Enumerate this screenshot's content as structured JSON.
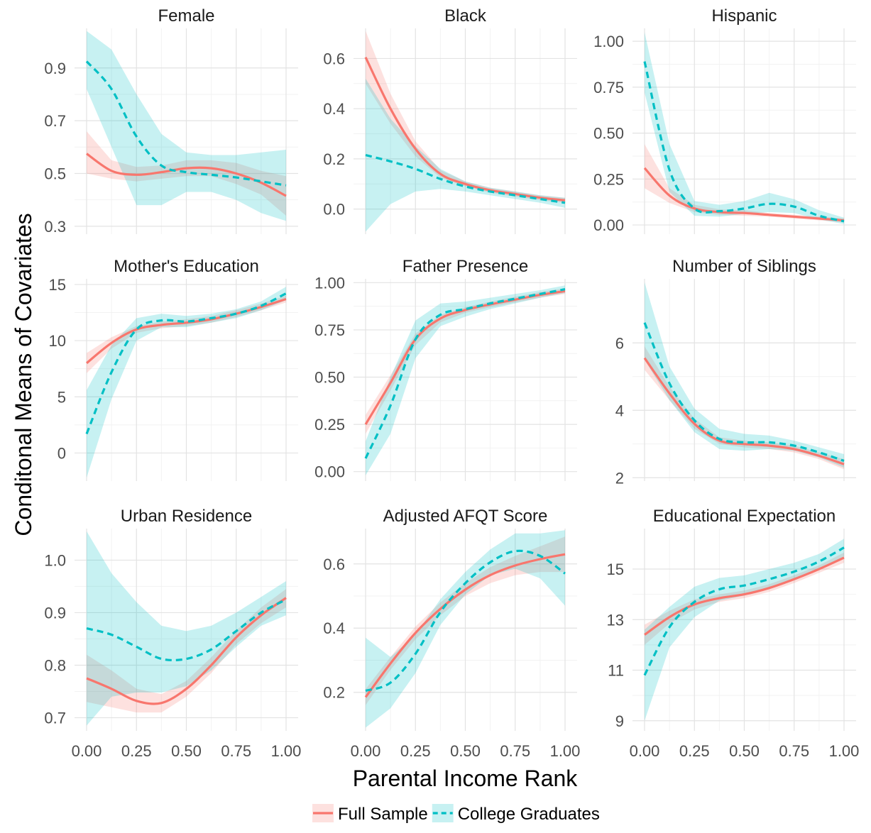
{
  "chart_data": {
    "type": "line",
    "layout": "facet-grid 3x3",
    "xlabel": "Parental Income Rank",
    "ylabel": "Conditonal Means of Covariates",
    "x_ticks": [
      "0.00",
      "0.25",
      "0.50",
      "0.75",
      "1.00"
    ],
    "xlim": [
      0,
      1
    ],
    "grid": true,
    "legend": {
      "placement": "bottom",
      "entries": [
        {
          "name": "Full Sample",
          "color": "#F8766D",
          "line": "solid"
        },
        {
          "name": "College Graduates",
          "color": "#00BFC4",
          "line": "dashed"
        }
      ]
    },
    "x": [
      0,
      0.125,
      0.25,
      0.375,
      0.5,
      0.625,
      0.75,
      0.875,
      1.0
    ],
    "panels": [
      {
        "title": "Female",
        "ylim": [
          0.27,
          1.05
        ],
        "y_ticks": [
          0.3,
          0.5,
          0.7,
          0.9
        ],
        "y_tick_labels": [
          "0.3",
          "0.5",
          "0.7",
          "0.9"
        ],
        "series": [
          {
            "name": "Full Sample",
            "values": [
              0.575,
              0.51,
              0.495,
              0.505,
              0.52,
              0.52,
              0.5,
              0.465,
              0.415
            ],
            "lower": [
              0.5,
              0.48,
              0.47,
              0.48,
              0.49,
              0.49,
              0.46,
              0.42,
              0.34
            ],
            "upper": [
              0.66,
              0.55,
              0.525,
              0.53,
              0.55,
              0.55,
              0.54,
              0.51,
              0.49
            ]
          },
          {
            "name": "College Graduates",
            "values": [
              0.925,
              0.82,
              0.64,
              0.53,
              0.505,
              0.495,
              0.485,
              0.47,
              0.455
            ],
            "lower": [
              0.82,
              0.6,
              0.38,
              0.38,
              0.43,
              0.43,
              0.4,
              0.35,
              0.32
            ],
            "upper": [
              1.04,
              0.97,
              0.8,
              0.65,
              0.58,
              0.57,
              0.57,
              0.58,
              0.59
            ]
          }
        ]
      },
      {
        "title": "Black",
        "ylim": [
          -0.1,
          0.72
        ],
        "y_ticks": [
          0.0,
          0.2,
          0.4,
          0.6
        ],
        "y_tick_labels": [
          "0.0",
          "0.2",
          "0.4",
          "0.6"
        ],
        "series": [
          {
            "name": "Full Sample",
            "values": [
              0.605,
              0.4,
              0.24,
              0.14,
              0.1,
              0.075,
              0.06,
              0.045,
              0.035
            ],
            "lower": [
              0.5,
              0.34,
              0.21,
              0.125,
              0.09,
              0.065,
              0.05,
              0.035,
              0.025
            ],
            "upper": [
              0.71,
              0.46,
              0.27,
              0.155,
              0.11,
              0.085,
              0.07,
              0.055,
              0.045
            ]
          },
          {
            "name": "College Graduates",
            "values": [
              0.215,
              0.19,
              0.16,
              0.12,
              0.09,
              0.07,
              0.055,
              0.04,
              0.025
            ],
            "lower": [
              -0.09,
              0.02,
              0.07,
              0.08,
              0.07,
              0.055,
              0.04,
              0.025,
              0.005
            ],
            "upper": [
              0.52,
              0.36,
              0.25,
              0.16,
              0.11,
              0.085,
              0.07,
              0.055,
              0.045
            ]
          }
        ]
      },
      {
        "title": "Hispanic",
        "ylim": [
          -0.05,
          1.07
        ],
        "y_ticks": [
          0.0,
          0.25,
          0.5,
          0.75,
          1.0
        ],
        "y_tick_labels": [
          "0.00",
          "0.25",
          "0.50",
          "0.75",
          "1.00"
        ],
        "series": [
          {
            "name": "Full Sample",
            "values": [
              0.31,
              0.16,
              0.09,
              0.07,
              0.065,
              0.055,
              0.045,
              0.035,
              0.025
            ],
            "lower": [
              0.2,
              0.12,
              0.07,
              0.055,
              0.05,
              0.045,
              0.035,
              0.025,
              0.015
            ],
            "upper": [
              0.44,
              0.2,
              0.11,
              0.085,
              0.08,
              0.065,
              0.055,
              0.045,
              0.035
            ]
          },
          {
            "name": "College Graduates",
            "values": [
              0.89,
              0.3,
              0.09,
              0.075,
              0.09,
              0.115,
              0.1,
              0.05,
              0.02
            ],
            "lower": [
              0.72,
              0.18,
              0.05,
              0.045,
              0.06,
              0.07,
              0.065,
              0.03,
              0.005
            ],
            "upper": [
              1.05,
              0.44,
              0.13,
              0.11,
              0.13,
              0.175,
              0.14,
              0.08,
              0.04
            ]
          }
        ]
      },
      {
        "title": "Mother's Education",
        "ylim": [
          -2.5,
          15.5
        ],
        "y_ticks": [
          0,
          5,
          10,
          15
        ],
        "y_tick_labels": [
          "0",
          "5",
          "10",
          "15"
        ],
        "series": [
          {
            "name": "Full Sample",
            "values": [
              8.0,
              9.8,
              11.0,
              11.4,
              11.6,
              11.9,
              12.4,
              13.0,
              13.7
            ],
            "lower": [
              7.1,
              9.3,
              10.7,
              11.1,
              11.3,
              11.6,
              12.1,
              12.7,
              13.4
            ],
            "upper": [
              8.9,
              10.3,
              11.3,
              11.7,
              11.9,
              12.2,
              12.7,
              13.3,
              14.0
            ]
          },
          {
            "name": "College Graduates",
            "values": [
              1.7,
              7.2,
              11.0,
              11.8,
              11.7,
              12.0,
              12.4,
              13.1,
              14.2
            ],
            "lower": [
              -2.2,
              4.8,
              10.0,
              11.2,
              11.2,
              11.6,
              12.0,
              12.7,
              13.6
            ],
            "upper": [
              5.6,
              9.6,
              12.0,
              12.4,
              12.2,
              12.4,
              12.8,
              13.5,
              14.8
            ]
          }
        ]
      },
      {
        "title": "Father Presence",
        "ylim": [
          -0.05,
          1.02
        ],
        "y_ticks": [
          0.0,
          0.25,
          0.5,
          0.75,
          1.0
        ],
        "y_tick_labels": [
          "0.00",
          "0.25",
          "0.50",
          "0.75",
          "1.00"
        ],
        "series": [
          {
            "name": "Full Sample",
            "values": [
              0.25,
              0.47,
              0.7,
              0.81,
              0.855,
              0.885,
              0.91,
              0.935,
              0.955
            ],
            "lower": [
              0.2,
              0.43,
              0.67,
              0.79,
              0.84,
              0.87,
              0.895,
              0.92,
              0.94
            ],
            "upper": [
              0.3,
              0.51,
              0.73,
              0.83,
              0.87,
              0.9,
              0.925,
              0.95,
              0.97
            ]
          },
          {
            "name": "College Graduates",
            "values": [
              0.07,
              0.35,
              0.7,
              0.83,
              0.86,
              0.89,
              0.915,
              0.94,
              0.965
            ],
            "lower": [
              -0.02,
              0.2,
              0.6,
              0.77,
              0.82,
              0.86,
              0.89,
              0.92,
              0.945
            ],
            "upper": [
              0.16,
              0.5,
              0.8,
              0.89,
              0.9,
              0.92,
              0.94,
              0.96,
              0.985
            ]
          }
        ]
      },
      {
        "title": "Number of Siblings",
        "ylim": [
          1.9,
          7.9
        ],
        "y_ticks": [
          2,
          4,
          6
        ],
        "y_tick_labels": [
          "2",
          "4",
          "6"
        ],
        "series": [
          {
            "name": "Full Sample",
            "values": [
              5.55,
              4.5,
              3.6,
              3.1,
              3.0,
              2.95,
              2.85,
              2.65,
              2.4
            ],
            "lower": [
              5.2,
              4.3,
              3.45,
              3.0,
              2.9,
              2.85,
              2.75,
              2.55,
              2.25
            ],
            "upper": [
              5.9,
              4.7,
              3.75,
              3.2,
              3.1,
              3.05,
              2.95,
              2.75,
              2.55
            ]
          },
          {
            "name": "College Graduates",
            "values": [
              6.6,
              4.8,
              3.7,
              3.15,
              3.05,
              3.05,
              2.95,
              2.75,
              2.5
            ],
            "lower": [
              5.5,
              4.3,
              3.35,
              2.85,
              2.8,
              2.85,
              2.8,
              2.6,
              2.3
            ],
            "upper": [
              7.8,
              5.3,
              4.05,
              3.45,
              3.3,
              3.25,
              3.1,
              2.9,
              2.7
            ]
          }
        ]
      },
      {
        "title": "Urban Residence",
        "ylim": [
          0.675,
          1.06
        ],
        "y_ticks": [
          0.7,
          0.8,
          0.9,
          1.0
        ],
        "y_tick_labels": [
          "0.7",
          "0.8",
          "0.9",
          "1.0"
        ],
        "series": [
          {
            "name": "Full Sample",
            "values": [
              0.775,
              0.755,
              0.732,
              0.728,
              0.755,
              0.8,
              0.853,
              0.895,
              0.928
            ],
            "lower": [
              0.73,
              0.72,
              0.71,
              0.71,
              0.74,
              0.785,
              0.84,
              0.88,
              0.91
            ],
            "upper": [
              0.82,
              0.79,
              0.755,
              0.745,
              0.77,
              0.815,
              0.866,
              0.91,
              0.945
            ]
          },
          {
            "name": "College Graduates",
            "values": [
              0.87,
              0.858,
              0.835,
              0.812,
              0.812,
              0.83,
              0.865,
              0.9,
              0.925
            ],
            "lower": [
              0.685,
              0.74,
              0.748,
              0.748,
              0.76,
              0.79,
              0.835,
              0.875,
              0.895
            ],
            "upper": [
              1.055,
              0.975,
              0.92,
              0.875,
              0.865,
              0.875,
              0.9,
              0.93,
              0.96
            ]
          }
        ]
      },
      {
        "title": "Adjusted AFQT Score",
        "ylim": [
          0.08,
          0.71
        ],
        "y_ticks": [
          0.2,
          0.4,
          0.6
        ],
        "y_tick_labels": [
          "0.2",
          "0.4",
          "0.6"
        ],
        "series": [
          {
            "name": "Full Sample",
            "values": [
              0.185,
              0.29,
              0.385,
              0.46,
              0.52,
              0.565,
              0.595,
              0.615,
              0.63
            ],
            "lower": [
              0.16,
              0.27,
              0.365,
              0.44,
              0.5,
              0.54,
              0.565,
              0.575,
              0.575
            ],
            "upper": [
              0.21,
              0.31,
              0.405,
              0.48,
              0.54,
              0.59,
              0.625,
              0.655,
              0.685
            ]
          },
          {
            "name": "College Graduates",
            "values": [
              0.205,
              0.23,
              0.32,
              0.45,
              0.54,
              0.605,
              0.64,
              0.625,
              0.57
            ],
            "lower": [
              0.09,
              0.15,
              0.26,
              0.41,
              0.505,
              0.565,
              0.585,
              0.555,
              0.47
            ],
            "upper": [
              0.37,
              0.31,
              0.38,
              0.49,
              0.575,
              0.645,
              0.695,
              0.695,
              0.705
            ]
          }
        ]
      },
      {
        "title": "Educational Expectation",
        "ylim": [
          8.6,
          16.6
        ],
        "y_ticks": [
          9,
          11,
          13,
          15
        ],
        "y_tick_labels": [
          "9",
          "11",
          "13",
          "15"
        ],
        "series": [
          {
            "name": "Full Sample",
            "values": [
              12.4,
              13.1,
              13.6,
              13.85,
              14.0,
              14.25,
              14.6,
              15.0,
              15.45
            ],
            "lower": [
              12.0,
              12.85,
              13.4,
              13.7,
              13.85,
              14.1,
              14.45,
              14.85,
              15.25
            ],
            "upper": [
              12.8,
              13.35,
              13.8,
              14.0,
              14.15,
              14.4,
              14.75,
              15.15,
              15.65
            ]
          },
          {
            "name": "College Graduates",
            "values": [
              10.8,
              12.7,
              13.7,
              14.2,
              14.35,
              14.6,
              14.9,
              15.3,
              15.85
            ],
            "lower": [
              9.0,
              11.9,
              13.1,
              13.75,
              13.95,
              14.2,
              14.55,
              15.0,
              15.5
            ],
            "upper": [
              12.6,
              13.5,
              14.3,
              14.65,
              14.75,
              15.0,
              15.25,
              15.6,
              16.2
            ]
          }
        ]
      }
    ]
  }
}
